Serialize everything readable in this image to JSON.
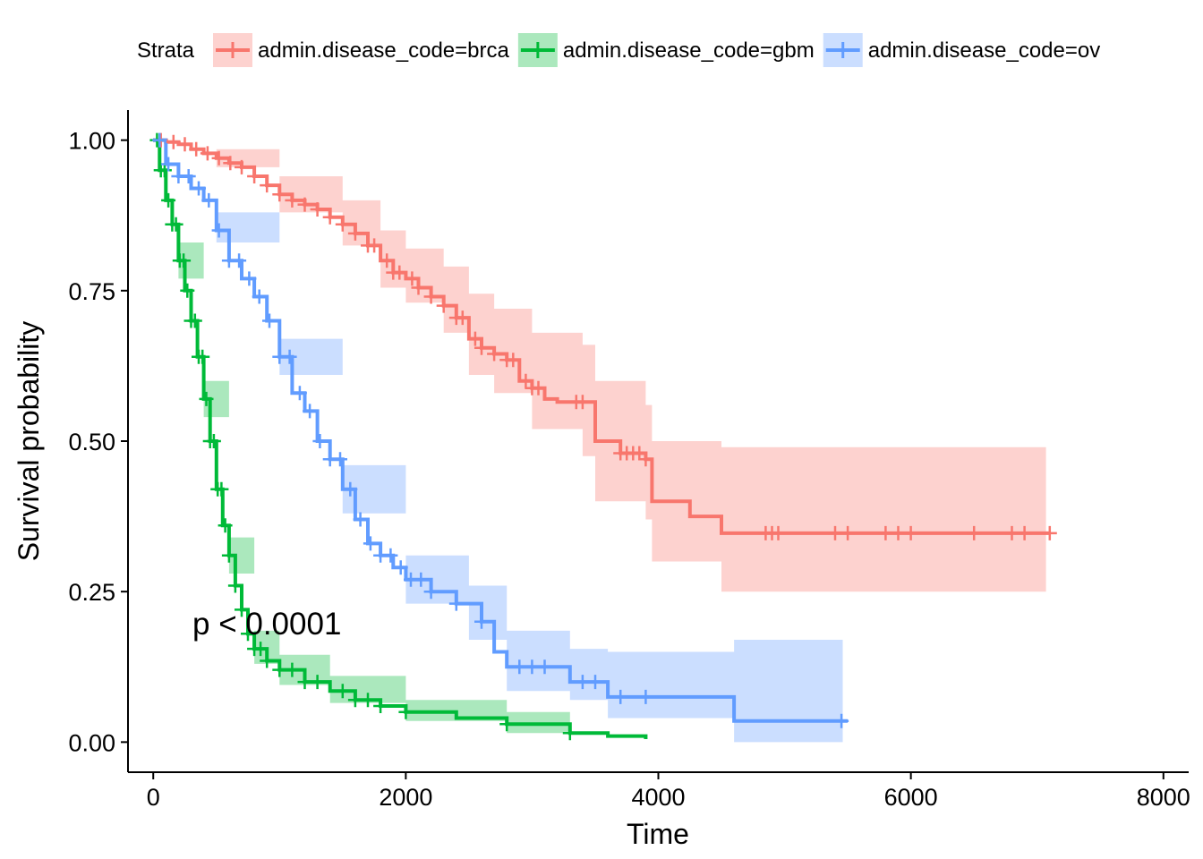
{
  "chart_data": {
    "type": "line",
    "subtype": "kaplan-meier survival curves with confidence bands and censor marks",
    "xlabel": "Time",
    "ylabel": "Survival probability",
    "xlim": [
      -200,
      8200
    ],
    "ylim": [
      -0.05,
      1.05
    ],
    "x_ticks": [
      0,
      2000,
      4000,
      6000,
      8000
    ],
    "x_tick_labels": [
      "0",
      "2000",
      "4000",
      "6000",
      "8000"
    ],
    "y_ticks": [
      0,
      0.25,
      0.5,
      0.75,
      1.0
    ],
    "y_tick_labels": [
      "0.00",
      "0.25",
      "0.50",
      "0.75",
      "1.00"
    ],
    "grid": false,
    "legend": {
      "position": "top",
      "title": "Strata"
    },
    "annotation": {
      "text": "p < 0.0001",
      "x": 120,
      "y": 0.195
    },
    "series": [
      {
        "name": "admin.disease_code=brca",
        "color": "#F8766D",
        "points": [
          [
            0,
            1.0
          ],
          [
            100,
            0.997
          ],
          [
            200,
            0.993
          ],
          [
            300,
            0.985
          ],
          [
            400,
            0.978
          ],
          [
            500,
            0.97
          ],
          [
            600,
            0.962
          ],
          [
            700,
            0.955
          ],
          [
            800,
            0.94
          ],
          [
            900,
            0.925
          ],
          [
            1000,
            0.91
          ],
          [
            1100,
            0.9
          ],
          [
            1200,
            0.893
          ],
          [
            1300,
            0.885
          ],
          [
            1400,
            0.872
          ],
          [
            1500,
            0.86
          ],
          [
            1600,
            0.845
          ],
          [
            1700,
            0.825
          ],
          [
            1800,
            0.8
          ],
          [
            1900,
            0.78
          ],
          [
            2000,
            0.77
          ],
          [
            2100,
            0.755
          ],
          [
            2200,
            0.74
          ],
          [
            2300,
            0.725
          ],
          [
            2400,
            0.705
          ],
          [
            2500,
            0.67
          ],
          [
            2600,
            0.655
          ],
          [
            2700,
            0.645
          ],
          [
            2800,
            0.635
          ],
          [
            2900,
            0.6
          ],
          [
            3000,
            0.588
          ],
          [
            3100,
            0.57
          ],
          [
            3200,
            0.565
          ],
          [
            3400,
            0.565
          ],
          [
            3500,
            0.5
          ],
          [
            3700,
            0.48
          ],
          [
            3900,
            0.47
          ],
          [
            3950,
            0.4
          ],
          [
            4250,
            0.4
          ],
          [
            4250,
            0.375
          ],
          [
            4500,
            0.375
          ],
          [
            4500,
            0.347
          ],
          [
            7100,
            0.347
          ]
        ],
        "lower": [
          [
            0,
            1.0
          ],
          [
            500,
            0.955
          ],
          [
            1000,
            0.88
          ],
          [
            1500,
            0.825
          ],
          [
            1800,
            0.755
          ],
          [
            2000,
            0.73
          ],
          [
            2300,
            0.68
          ],
          [
            2500,
            0.61
          ],
          [
            2700,
            0.58
          ],
          [
            3000,
            0.52
          ],
          [
            3400,
            0.475
          ],
          [
            3500,
            0.4
          ],
          [
            3900,
            0.37
          ],
          [
            3950,
            0.3
          ],
          [
            4250,
            0.3
          ],
          [
            4500,
            0.25
          ],
          [
            7070,
            0.25
          ]
        ],
        "upper": [
          [
            0,
            1.0
          ],
          [
            500,
            0.985
          ],
          [
            1000,
            0.94
          ],
          [
            1500,
            0.9
          ],
          [
            1800,
            0.85
          ],
          [
            2000,
            0.82
          ],
          [
            2300,
            0.79
          ],
          [
            2500,
            0.745
          ],
          [
            2700,
            0.72
          ],
          [
            3000,
            0.68
          ],
          [
            3400,
            0.66
          ],
          [
            3500,
            0.6
          ],
          [
            3900,
            0.56
          ],
          [
            3950,
            0.5
          ],
          [
            4250,
            0.5
          ],
          [
            4500,
            0.49
          ],
          [
            7070,
            0.49
          ]
        ],
        "censored_x": [
          60,
          160,
          250,
          340,
          430,
          520,
          610,
          700,
          800,
          900,
          1000,
          1100,
          1200,
          1300,
          1400,
          1500,
          1600,
          1700,
          1750,
          1850,
          1900,
          1950,
          2050,
          2100,
          2200,
          2300,
          2400,
          2450,
          2550,
          2600,
          2700,
          2800,
          2850,
          2950,
          3000,
          3050,
          3350,
          3400,
          3700,
          3750,
          3800,
          3850,
          3900,
          4850,
          4900,
          4950,
          5400,
          5500,
          5800,
          5900,
          6000,
          6500,
          6800,
          6900,
          7100
        ]
      },
      {
        "name": "admin.disease_code=gbm",
        "color": "#00BA38",
        "points": [
          [
            0,
            1.0
          ],
          [
            50,
            0.95
          ],
          [
            100,
            0.9
          ],
          [
            150,
            0.86
          ],
          [
            200,
            0.8
          ],
          [
            250,
            0.75
          ],
          [
            300,
            0.7
          ],
          [
            350,
            0.64
          ],
          [
            400,
            0.57
          ],
          [
            450,
            0.5
          ],
          [
            500,
            0.42
          ],
          [
            550,
            0.36
          ],
          [
            600,
            0.31
          ],
          [
            650,
            0.26
          ],
          [
            700,
            0.22
          ],
          [
            750,
            0.18
          ],
          [
            800,
            0.155
          ],
          [
            900,
            0.135
          ],
          [
            1000,
            0.12
          ],
          [
            1200,
            0.1
          ],
          [
            1400,
            0.085
          ],
          [
            1600,
            0.07
          ],
          [
            1800,
            0.06
          ],
          [
            2000,
            0.05
          ],
          [
            2400,
            0.04
          ],
          [
            2800,
            0.03
          ],
          [
            3300,
            0.015
          ],
          [
            3600,
            0.01
          ],
          [
            3900,
            0.005
          ]
        ],
        "lower": [
          [
            0,
            1.0
          ],
          [
            200,
            0.77
          ],
          [
            400,
            0.54
          ],
          [
            600,
            0.28
          ],
          [
            800,
            0.13
          ],
          [
            1000,
            0.095
          ],
          [
            1400,
            0.065
          ],
          [
            2000,
            0.035
          ],
          [
            2800,
            0.015
          ],
          [
            3300,
            0.0
          ]
        ],
        "upper": [
          [
            0,
            1.0
          ],
          [
            200,
            0.83
          ],
          [
            400,
            0.6
          ],
          [
            600,
            0.34
          ],
          [
            800,
            0.185
          ],
          [
            1000,
            0.145
          ],
          [
            1400,
            0.11
          ],
          [
            2000,
            0.07
          ],
          [
            2800,
            0.05
          ],
          [
            3300,
            0.04
          ]
        ],
        "censored_x": [
          30,
          60,
          90,
          120,
          150,
          180,
          210,
          240,
          270,
          300,
          330,
          360,
          390,
          420,
          450,
          480,
          510,
          540,
          570,
          600,
          650,
          700,
          750,
          800,
          850,
          900,
          1000,
          1100,
          1200,
          1300,
          1500,
          1600,
          1700,
          1800,
          2000,
          2800,
          3300
        ]
      },
      {
        "name": "admin.disease_code=ov",
        "color": "#619CFF",
        "points": [
          [
            0,
            1.0
          ],
          [
            100,
            0.96
          ],
          [
            200,
            0.94
          ],
          [
            300,
            0.92
          ],
          [
            400,
            0.9
          ],
          [
            500,
            0.85
          ],
          [
            600,
            0.8
          ],
          [
            700,
            0.77
          ],
          [
            800,
            0.74
          ],
          [
            900,
            0.7
          ],
          [
            1000,
            0.64
          ],
          [
            1100,
            0.58
          ],
          [
            1200,
            0.55
          ],
          [
            1300,
            0.5
          ],
          [
            1400,
            0.47
          ],
          [
            1500,
            0.42
          ],
          [
            1600,
            0.37
          ],
          [
            1700,
            0.33
          ],
          [
            1800,
            0.31
          ],
          [
            1900,
            0.29
          ],
          [
            2000,
            0.27
          ],
          [
            2200,
            0.25
          ],
          [
            2400,
            0.23
          ],
          [
            2600,
            0.2
          ],
          [
            2700,
            0.15
          ],
          [
            2800,
            0.125
          ],
          [
            3300,
            0.125
          ],
          [
            3300,
            0.1
          ],
          [
            3600,
            0.09
          ],
          [
            3600,
            0.075
          ],
          [
            4600,
            0.075
          ],
          [
            4600,
            0.035
          ],
          [
            5500,
            0.035
          ]
        ],
        "lower": [
          [
            0,
            1.0
          ],
          [
            500,
            0.83
          ],
          [
            1000,
            0.61
          ],
          [
            1500,
            0.38
          ],
          [
            2000,
            0.23
          ],
          [
            2500,
            0.17
          ],
          [
            2800,
            0.085
          ],
          [
            3300,
            0.07
          ],
          [
            3600,
            0.04
          ],
          [
            4600,
            0.0
          ],
          [
            5460,
            0.0
          ]
        ],
        "upper": [
          [
            0,
            1.0
          ],
          [
            500,
            0.88
          ],
          [
            1000,
            0.67
          ],
          [
            1500,
            0.46
          ],
          [
            2000,
            0.31
          ],
          [
            2500,
            0.26
          ],
          [
            2800,
            0.185
          ],
          [
            3300,
            0.155
          ],
          [
            3600,
            0.15
          ],
          [
            4600,
            0.17
          ],
          [
            5460,
            0.17
          ]
        ],
        "censored_x": [
          50,
          120,
          200,
          280,
          360,
          440,
          520,
          600,
          680,
          760,
          840,
          920,
          1000,
          1080,
          1160,
          1240,
          1320,
          1400,
          1480,
          1560,
          1640,
          1720,
          1800,
          1880,
          1960,
          2040,
          2120,
          2200,
          2400,
          2600,
          2900,
          3000,
          3100,
          3400,
          3500,
          3700,
          3900,
          5450
        ]
      }
    ]
  }
}
